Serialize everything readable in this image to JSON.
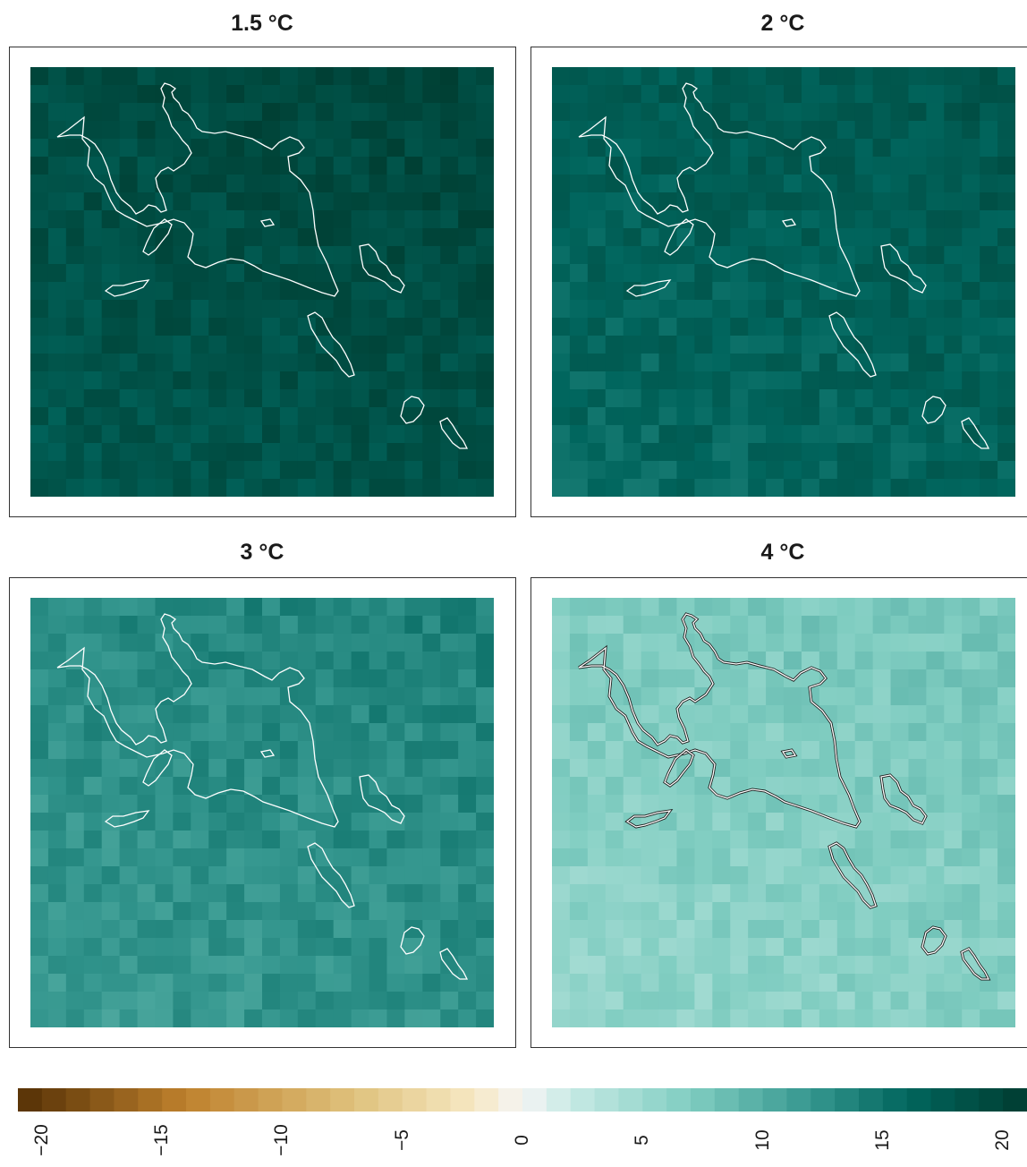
{
  "panels": [
    {
      "title": "1.5 °C",
      "base_value": 19.0
    },
    {
      "title": "2 °C",
      "base_value": 17.0
    },
    {
      "title": "3 °C",
      "base_value": 13.0
    },
    {
      "title": "4 °C",
      "base_value": 7.0
    }
  ],
  "legend": {
    "min": -21,
    "max": 21,
    "ticks": [
      "−20",
      "−15",
      "−10",
      "−5",
      "0",
      "5",
      "10",
      "15",
      "20"
    ],
    "tick_values": [
      -20,
      -15,
      -10,
      -5,
      0,
      5,
      10,
      15,
      20
    ],
    "colors": {
      "negative_strong": "#543005",
      "negative_mid": "#bf812d",
      "negative_light": "#f6e8c3",
      "zero": "#f5f5f5",
      "positive_light": "#c7eae5",
      "positive_mid": "#35978f",
      "positive_strong": "#003c30"
    }
  },
  "outline_color": "#ffffff"
}
